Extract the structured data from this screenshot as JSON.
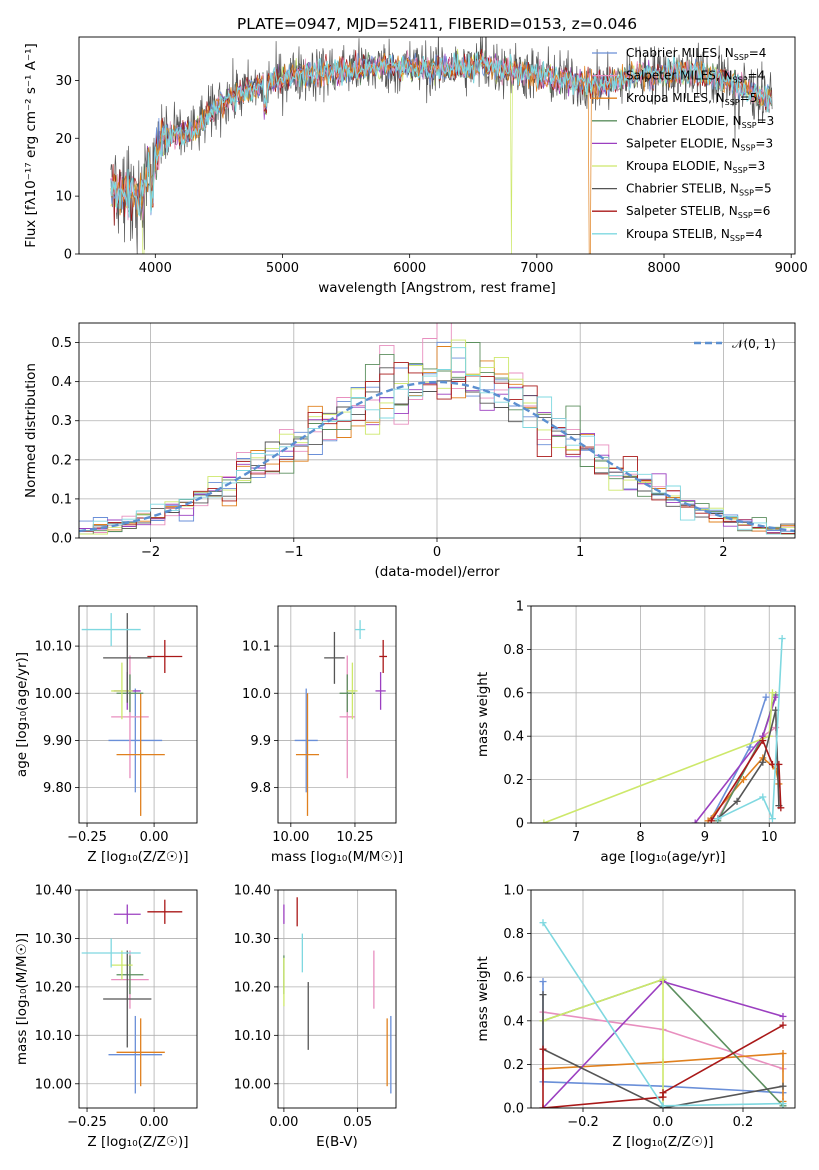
{
  "figure_title": "PLATE=0947, MJD=52411, FIBERID=0153, z=0.046",
  "models": [
    {
      "name": "Chabrier MILES",
      "nssp": "4",
      "color": "#6a8fd8"
    },
    {
      "name": "Salpeter MILES",
      "nssp": "4",
      "color": "#e88fbf"
    },
    {
      "name": "Kroupa MILES",
      "nssp": "5",
      "color": "#e0801e"
    },
    {
      "name": "Chabrier ELODIE",
      "nssp": "3",
      "color": "#5c8f5f"
    },
    {
      "name": "Salpeter ELODIE",
      "nssp": "3",
      "color": "#9b3fc0"
    },
    {
      "name": "Kroupa ELODIE",
      "nssp": "3",
      "color": "#cde86a"
    },
    {
      "name": "Chabrier STELIB",
      "nssp": "5",
      "color": "#555555"
    },
    {
      "name": "Salpeter STELIB",
      "nssp": "6",
      "color": "#a91818"
    },
    {
      "name": "Kroupa STELIB",
      "nssp": "4",
      "color": "#7fd8e0"
    }
  ],
  "chart_data": [
    {
      "id": "spectrum",
      "type": "line",
      "xlabel": "wavelength [Angstrom, rest frame]",
      "ylabel": "Flux [fλ10⁻¹⁷ erg cm⁻² s⁻¹ A⁻¹]",
      "xlim": [
        3400,
        9030
      ],
      "ylim": [
        0,
        37.5
      ],
      "xticks": [
        4000,
        5000,
        6000,
        7000,
        8000,
        9000
      ],
      "yticks": [
        0,
        10,
        20,
        30
      ],
      "grid": false,
      "legend_position": "right",
      "continuum_points": [
        [
          3650,
          11
        ],
        [
          3900,
          10
        ],
        [
          3950,
          15
        ],
        [
          4050,
          20
        ],
        [
          4300,
          21
        ],
        [
          4500,
          26
        ],
        [
          4800,
          29
        ],
        [
          5100,
          31
        ],
        [
          5400,
          31.5
        ],
        [
          5800,
          32.5
        ],
        [
          6200,
          32
        ],
        [
          6600,
          32.5
        ],
        [
          7000,
          31
        ],
        [
          7500,
          29
        ],
        [
          7800,
          31
        ],
        [
          8200,
          31.5
        ],
        [
          8500,
          30
        ],
        [
          8800,
          27
        ]
      ],
      "spikes": [
        [
          3910,
          "Kroupa ELODIE",
          0
        ],
        [
          6800,
          "Kroupa ELODIE",
          0
        ],
        [
          7420,
          "Kroupa MILES",
          0
        ],
        [
          6600,
          "Chabrier STELIB",
          37.5
        ]
      ]
    },
    {
      "id": "residuals",
      "type": "histogram",
      "xlabel": "(data-model)/error",
      "ylabel": "Normed distribution",
      "xlim": [
        -2.5,
        2.5
      ],
      "ylim": [
        0,
        0.55
      ],
      "xticks": [
        -2,
        -1,
        0,
        1,
        2
      ],
      "yticks": [
        0.0,
        0.1,
        0.2,
        0.3,
        0.4,
        0.5
      ],
      "grid": true,
      "bin_width": 0.1,
      "reference_curve": "𝒩(0, 1)",
      "legend_position": "top-right"
    },
    {
      "id": "age_vs_Z",
      "type": "scatter",
      "xlabel": "Z [log₁₀(Z/Z☉)]",
      "ylabel": "age  [log₁₀(age/yr)]",
      "xlim": [
        -0.28,
        0.16
      ],
      "ylim": [
        9.725,
        10.185
      ],
      "xticks": [
        -0.25,
        0.0
      ],
      "yticks": [
        9.8,
        9.9,
        10.0,
        10.1
      ],
      "grid": true,
      "points": [
        {
          "model": "Chabrier MILES",
          "x": -0.07,
          "xerr": 0.1,
          "y": 9.9,
          "yerr": 0.11
        },
        {
          "model": "Salpeter MILES",
          "x": -0.09,
          "xerr": 0.07,
          "y": 9.95,
          "yerr": 0.13
        },
        {
          "model": "Kroupa MILES",
          "x": -0.05,
          "xerr": 0.09,
          "y": 9.87,
          "yerr": 0.13
        },
        {
          "model": "Chabrier ELODIE",
          "x": -0.09,
          "xerr": 0.05,
          "y": 10.0,
          "yerr": 0.04
        },
        {
          "model": "Salpeter ELODIE",
          "x": -0.1,
          "xerr": 0.05,
          "y": 10.005,
          "yerr": 0.04
        },
        {
          "model": "Kroupa ELODIE",
          "x": -0.12,
          "xerr": 0.04,
          "y": 10.005,
          "yerr": 0.06
        },
        {
          "model": "Chabrier STELIB",
          "x": -0.1,
          "xerr": 0.09,
          "y": 10.075,
          "yerr": 0.095
        },
        {
          "model": "Salpeter STELIB",
          "x": 0.04,
          "xerr": 0.065,
          "y": 10.078,
          "yerr": 0.035
        },
        {
          "model": "Kroupa STELIB",
          "x": -0.16,
          "xerr": 0.11,
          "y": 10.135,
          "yerr": 0.035
        }
      ]
    },
    {
      "id": "age_vs_mass",
      "type": "scatter",
      "xlabel": "mass [log₁₀(M/M☉)]",
      "ylabel": "",
      "xlim": [
        9.95,
        10.41
      ],
      "ylim": [
        9.725,
        10.185
      ],
      "xticks": [
        10.0,
        10.25
      ],
      "yticks": [
        9.8,
        9.9,
        10.0,
        10.1
      ],
      "grid": true,
      "points": [
        {
          "model": "Chabrier MILES",
          "x": 10.06,
          "xerr": 0.045,
          "y": 9.9,
          "yerr": 0.11
        },
        {
          "model": "Salpeter MILES",
          "x": 10.22,
          "xerr": 0.03,
          "y": 9.95,
          "yerr": 0.13
        },
        {
          "model": "Kroupa MILES",
          "x": 10.065,
          "xerr": 0.045,
          "y": 9.87,
          "yerr": 0.13
        },
        {
          "model": "Chabrier ELODIE",
          "x": 10.22,
          "xerr": 0.03,
          "y": 10.0,
          "yerr": 0.04
        },
        {
          "model": "Salpeter ELODIE",
          "x": 10.35,
          "xerr": 0.02,
          "y": 10.005,
          "yerr": 0.04
        },
        {
          "model": "Kroupa ELODIE",
          "x": 10.24,
          "xerr": 0.02,
          "y": 10.005,
          "yerr": 0.06
        },
        {
          "model": "Chabrier STELIB",
          "x": 10.17,
          "xerr": 0.04,
          "y": 10.075,
          "yerr": 0.055
        },
        {
          "model": "Salpeter STELIB",
          "x": 10.36,
          "xerr": 0.015,
          "y": 10.078,
          "yerr": 0.035
        },
        {
          "model": "Kroupa STELIB",
          "x": 10.27,
          "xerr": 0.02,
          "y": 10.135,
          "yerr": 0.02
        }
      ]
    },
    {
      "id": "weight_vs_age",
      "type": "line",
      "xlabel": "age  [log₁₀(age/yr)]",
      "ylabel": "mass weight",
      "xlim": [
        6.3,
        10.4
      ],
      "ylim": [
        0,
        1.0
      ],
      "xticks": [
        7,
        8,
        9,
        10
      ],
      "yticks": [
        0.0,
        0.2,
        0.4,
        0.6,
        0.8,
        1.0
      ],
      "grid": true,
      "series": [
        {
          "model": "Chabrier MILES",
          "x": [
            9.1,
            9.7,
            9.95
          ],
          "y": [
            0.02,
            0.35,
            0.58
          ]
        },
        {
          "model": "Salpeter MILES",
          "x": [
            9.2,
            9.9,
            10.1
          ],
          "y": [
            0.02,
            0.4,
            0.44
          ]
        },
        {
          "model": "Kroupa MILES",
          "x": [
            9.05,
            9.6,
            9.9,
            10.1,
            10.15
          ],
          "y": [
            0.01,
            0.2,
            0.3,
            0.25,
            0.18
          ]
        },
        {
          "model": "Chabrier ELODIE",
          "x": [
            9.2,
            9.9,
            10.1
          ],
          "y": [
            0.01,
            0.4,
            0.59
          ]
        },
        {
          "model": "Salpeter ELODIE",
          "x": [
            8.85,
            9.9,
            10.1
          ],
          "y": [
            0.0,
            0.4,
            0.58
          ]
        },
        {
          "model": "Kroupa ELODIE",
          "x": [
            6.5,
            10.0,
            10.05
          ],
          "y": [
            0.0,
            0.4,
            0.6
          ]
        },
        {
          "model": "Chabrier STELIB",
          "x": [
            9.2,
            9.5,
            9.9,
            10.1,
            10.15
          ],
          "y": [
            0.02,
            0.1,
            0.28,
            0.52,
            0.08
          ]
        },
        {
          "model": "Salpeter STELIB",
          "x": [
            9.1,
            9.9,
            10.05,
            10.15,
            10.18
          ],
          "y": [
            0.01,
            0.38,
            0.27,
            0.27,
            0.07
          ]
        },
        {
          "model": "Kroupa STELIB",
          "x": [
            9.2,
            9.9,
            10.05,
            10.2
          ],
          "y": [
            0.02,
            0.12,
            0.02,
            0.85
          ]
        }
      ]
    },
    {
      "id": "mass_vs_Z",
      "type": "scatter",
      "xlabel": "Z [log₁₀(Z/Z☉)]",
      "ylabel": "mass [log₁₀(M/M☉)]",
      "xlim": [
        -0.28,
        0.16
      ],
      "ylim": [
        9.95,
        10.4
      ],
      "xticks": [
        -0.25,
        0.0
      ],
      "yticks": [
        10.0,
        10.1,
        10.2,
        10.3,
        10.4
      ],
      "grid": true,
      "points": [
        {
          "model": "Chabrier MILES",
          "x": -0.07,
          "xerr": 0.1,
          "y": 10.06,
          "yerr": 0.08
        },
        {
          "model": "Salpeter MILES",
          "x": -0.09,
          "xerr": 0.07,
          "y": 10.215,
          "yerr": 0.06
        },
        {
          "model": "Kroupa MILES",
          "x": -0.05,
          "xerr": 0.09,
          "y": 10.065,
          "yerr": 0.07
        },
        {
          "model": "Chabrier ELODIE",
          "x": -0.09,
          "xerr": 0.05,
          "y": 10.225,
          "yerr": 0.04
        },
        {
          "model": "Salpeter ELODIE",
          "x": -0.1,
          "xerr": 0.05,
          "y": 10.35,
          "yerr": 0.02
        },
        {
          "model": "Kroupa ELODIE",
          "x": -0.12,
          "xerr": 0.04,
          "y": 10.245,
          "yerr": 0.03
        },
        {
          "model": "Chabrier STELIB",
          "x": -0.1,
          "xerr": 0.09,
          "y": 10.175,
          "yerr": 0.1
        },
        {
          "model": "Salpeter STELIB",
          "x": 0.04,
          "xerr": 0.065,
          "y": 10.355,
          "yerr": 0.025
        },
        {
          "model": "Kroupa STELIB",
          "x": -0.16,
          "xerr": 0.11,
          "y": 10.27,
          "yerr": 0.03
        }
      ]
    },
    {
      "id": "mass_vs_EBV",
      "type": "scatter",
      "xlabel": "E(B-V)",
      "ylabel": "",
      "xlim": [
        -0.004,
        0.076
      ],
      "ylim": [
        9.95,
        10.4
      ],
      "xticks": [
        0.0,
        0.05
      ],
      "yticks": [
        10.0,
        10.1,
        10.2,
        10.3,
        10.4
      ],
      "grid": true,
      "points": [
        {
          "model": "Chabrier MILES",
          "x": 0.0725,
          "y": 10.06,
          "yerr": 0.08
        },
        {
          "model": "Salpeter MILES",
          "x": 0.061,
          "y": 10.215,
          "yerr": 0.06
        },
        {
          "model": "Kroupa MILES",
          "x": 0.07,
          "y": 10.065,
          "yerr": 0.07
        },
        {
          "model": "Chabrier ELODIE",
          "x": 0.0,
          "y": 10.225,
          "yerr": 0.04
        },
        {
          "model": "Salpeter ELODIE",
          "x": 0.0,
          "y": 10.35,
          "yerr": 0.02
        },
        {
          "model": "Kroupa ELODIE",
          "x": 0.0,
          "y": 10.21,
          "yerr": 0.05
        },
        {
          "model": "Chabrier STELIB",
          "x": 0.0165,
          "y": 10.14,
          "yerr": 0.07
        },
        {
          "model": "Salpeter STELIB",
          "x": 0.009,
          "y": 10.355,
          "yerr": 0.03
        },
        {
          "model": "Kroupa STELIB",
          "x": 0.0125,
          "y": 10.27,
          "yerr": 0.04
        }
      ]
    },
    {
      "id": "weight_vs_Z",
      "type": "line",
      "xlabel": "Z [log₁₀(Z/Z☉)]",
      "ylabel": "mass weight",
      "xlim": [
        -0.33,
        0.33
      ],
      "ylim": [
        0,
        1.0
      ],
      "xticks": [
        -0.2,
        0.0,
        0.2
      ],
      "yticks": [
        0.0,
        0.2,
        0.4,
        0.6,
        0.8,
        1.0
      ],
      "grid": true,
      "series": [
        {
          "model": "Chabrier MILES",
          "x": [
            -0.3,
            -0.3,
            0.0,
            0.3
          ],
          "y": [
            0.58,
            0.12,
            0.1,
            0.07
          ]
        },
        {
          "model": "Salpeter MILES",
          "x": [
            -0.3,
            0.0,
            0.3
          ],
          "y": [
            0.44,
            0.36,
            0.18
          ]
        },
        {
          "model": "Kroupa MILES",
          "x": [
            -0.3,
            0.0,
            0.3,
            0.3
          ],
          "y": [
            0.18,
            0.21,
            0.25,
            0.03
          ]
        },
        {
          "model": "Chabrier ELODIE",
          "x": [
            -0.3,
            0.0,
            0.3
          ],
          "y": [
            0.4,
            0.59,
            0.01
          ]
        },
        {
          "model": "Salpeter ELODIE",
          "x": [
            -0.3,
            0.0,
            0.3
          ],
          "y": [
            0.0,
            0.58,
            0.42
          ]
        },
        {
          "model": "Kroupa ELODIE",
          "x": [
            -0.3,
            0.0,
            0.0
          ],
          "y": [
            0.4,
            0.59,
            0.0
          ]
        },
        {
          "model": "Chabrier STELIB",
          "x": [
            -0.3,
            -0.3,
            0.0,
            0.3
          ],
          "y": [
            0.52,
            0.27,
            0.0,
            0.1
          ]
        },
        {
          "model": "Salpeter STELIB",
          "x": [
            -0.3,
            -0.3,
            0.0,
            0.0,
            0.3
          ],
          "y": [
            0.27,
            0.0,
            0.05,
            0.07,
            0.38
          ]
        },
        {
          "model": "Kroupa STELIB",
          "x": [
            -0.3,
            0.0,
            0.3
          ],
          "y": [
            0.85,
            0.01,
            0.02
          ]
        }
      ]
    }
  ]
}
